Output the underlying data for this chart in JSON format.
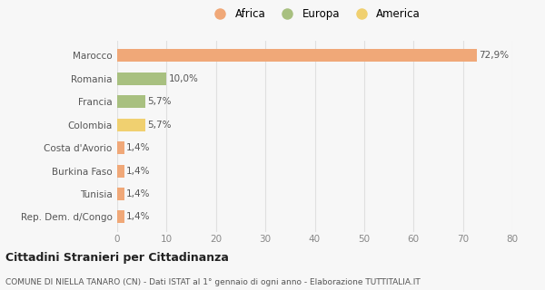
{
  "categories": [
    "Rep. Dem. d/Congo",
    "Tunisia",
    "Burkina Faso",
    "Costa d'Avorio",
    "Colombia",
    "Francia",
    "Romania",
    "Marocco"
  ],
  "values": [
    1.4,
    1.4,
    1.4,
    1.4,
    5.7,
    5.7,
    10.0,
    72.9
  ],
  "colors": [
    "#f0a878",
    "#f0a878",
    "#f0a878",
    "#f0a878",
    "#f0d070",
    "#a8c080",
    "#a8c080",
    "#f0a878"
  ],
  "labels": [
    "1,4%",
    "1,4%",
    "1,4%",
    "1,4%",
    "5,7%",
    "5,7%",
    "10,0%",
    "72,9%"
  ],
  "legend": [
    {
      "label": "Africa",
      "color": "#f0a878"
    },
    {
      "label": "Europa",
      "color": "#a8c080"
    },
    {
      "label": "America",
      "color": "#f0d070"
    }
  ],
  "xlim": [
    0,
    80
  ],
  "xticks": [
    0,
    10,
    20,
    30,
    40,
    50,
    60,
    70,
    80
  ],
  "title": "Cittadini Stranieri per Cittadinanza",
  "subtitle": "COMUNE DI NIELLA TANARO (CN) - Dati ISTAT al 1° gennaio di ogni anno - Elaborazione TUTTITALIA.IT",
  "bg_color": "#f7f7f7",
  "grid_color": "#e0e0e0"
}
